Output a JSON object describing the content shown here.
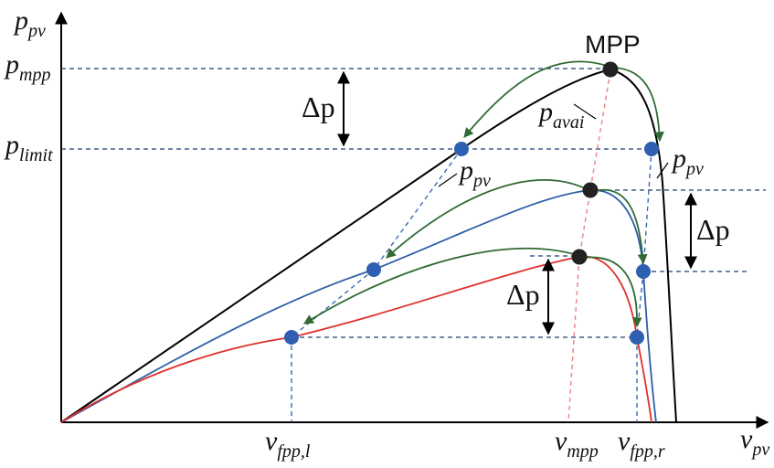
{
  "labels": {
    "y_axis_main": "p",
    "y_axis_sub": "pv",
    "x_axis_main": "v",
    "x_axis_sub": "pv",
    "p_mpp_main": "p",
    "p_mpp_sub": "mpp",
    "p_limit_main": "p",
    "p_limit_sub": "limit",
    "mpp": "MPP",
    "p_avai_main": "p",
    "p_avai_sub": "avai",
    "p_pv_left_main": "p",
    "p_pv_left_sub": "pv",
    "p_pv_right_main": "p",
    "p_pv_right_sub": "pv",
    "delta_p": "Δp",
    "v_fpp_l_main": "v",
    "v_fpp_l_sub": "fpp,l",
    "v_mpp_main": "v",
    "v_mpp_sub": "mpp",
    "v_fpp_r_main": "v",
    "v_fpp_r_sub": "fpp,r"
  },
  "colors": {
    "axis": "#000000",
    "curve_high": "#000000",
    "curve_mid": "#2e5ea8",
    "curve_low": "#e0302a",
    "transition_arrow": "#2f6b34",
    "operating_point": "#2e5fb0",
    "mpp_point": "#222222",
    "mpp_locus": "#f08a8a",
    "guide_dashed": "#1f3c6e",
    "projection_dashed": "#2e5fb0"
  },
  "icons": {
    "mpp_marker": "filled-black-circle",
    "operating_marker": "filled-blue-circle",
    "transition_arrow": "green-curved-arrow",
    "delta_arrow": "double-headed-vertical-arrow"
  }
}
